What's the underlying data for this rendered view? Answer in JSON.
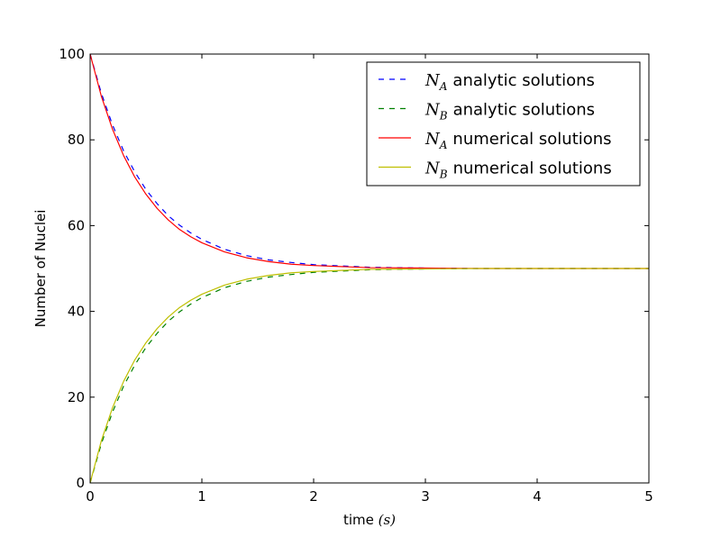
{
  "chart_data": {
    "type": "line",
    "title": "",
    "xlabel": "time",
    "xlabel_math": "(s)",
    "ylabel": "Number of Nuclei",
    "xlim": [
      0,
      5
    ],
    "ylim": [
      0,
      100
    ],
    "xticks": [
      "0",
      "1",
      "2",
      "3",
      "4",
      "5"
    ],
    "yticks": [
      "0",
      "20",
      "40",
      "60",
      "80",
      "100"
    ],
    "grid": false,
    "legend_position": "top-right",
    "x": [
      0,
      0.1,
      0.2,
      0.3,
      0.4,
      0.5,
      0.6,
      0.7,
      0.8,
      0.9,
      1.0,
      1.2,
      1.4,
      1.6,
      1.8,
      2.0,
      2.5,
      3.0,
      3.5,
      4.0,
      4.5,
      5.0
    ],
    "series": [
      {
        "symbol": "N",
        "subscript": "A",
        "name": "analytic solutions",
        "color": "#0000ff",
        "style": "dashed",
        "values": [
          100,
          90.9,
          83.5,
          77.4,
          72.5,
          68.4,
          65.1,
          62.3,
          60.1,
          58.3,
          56.8,
          54.5,
          53.0,
          52.0,
          51.4,
          50.9,
          50.3,
          50.1,
          50.0,
          50.0,
          50.0,
          50.0
        ]
      },
      {
        "symbol": "N",
        "subscript": "B",
        "name": "analytic solutions",
        "color": "#008000",
        "style": "dashed",
        "values": [
          0,
          9.1,
          16.5,
          22.6,
          27.5,
          31.6,
          34.9,
          37.7,
          39.9,
          41.7,
          43.2,
          45.5,
          47.0,
          48.0,
          48.6,
          49.1,
          49.7,
          49.9,
          50.0,
          50.0,
          50.0,
          50.0
        ]
      },
      {
        "symbol": "N",
        "subscript": "A",
        "name": "numerical solutions",
        "color": "#ff0000",
        "style": "solid",
        "values": [
          100,
          90.2,
          82.5,
          76.3,
          71.3,
          67.3,
          64.0,
          61.3,
          59.1,
          57.4,
          56.0,
          53.9,
          52.5,
          51.6,
          51.0,
          50.7,
          50.2,
          50.1,
          50.0,
          50.0,
          50.0,
          50.0
        ]
      },
      {
        "symbol": "N",
        "subscript": "B",
        "name": "numerical solutions",
        "color": "#bfbf00",
        "style": "solid",
        "values": [
          0,
          9.8,
          17.5,
          23.7,
          28.7,
          32.7,
          36.0,
          38.7,
          40.9,
          42.6,
          44.0,
          46.1,
          47.5,
          48.4,
          49.0,
          49.3,
          49.8,
          49.9,
          50.0,
          50.0,
          50.0,
          50.0
        ]
      }
    ]
  }
}
